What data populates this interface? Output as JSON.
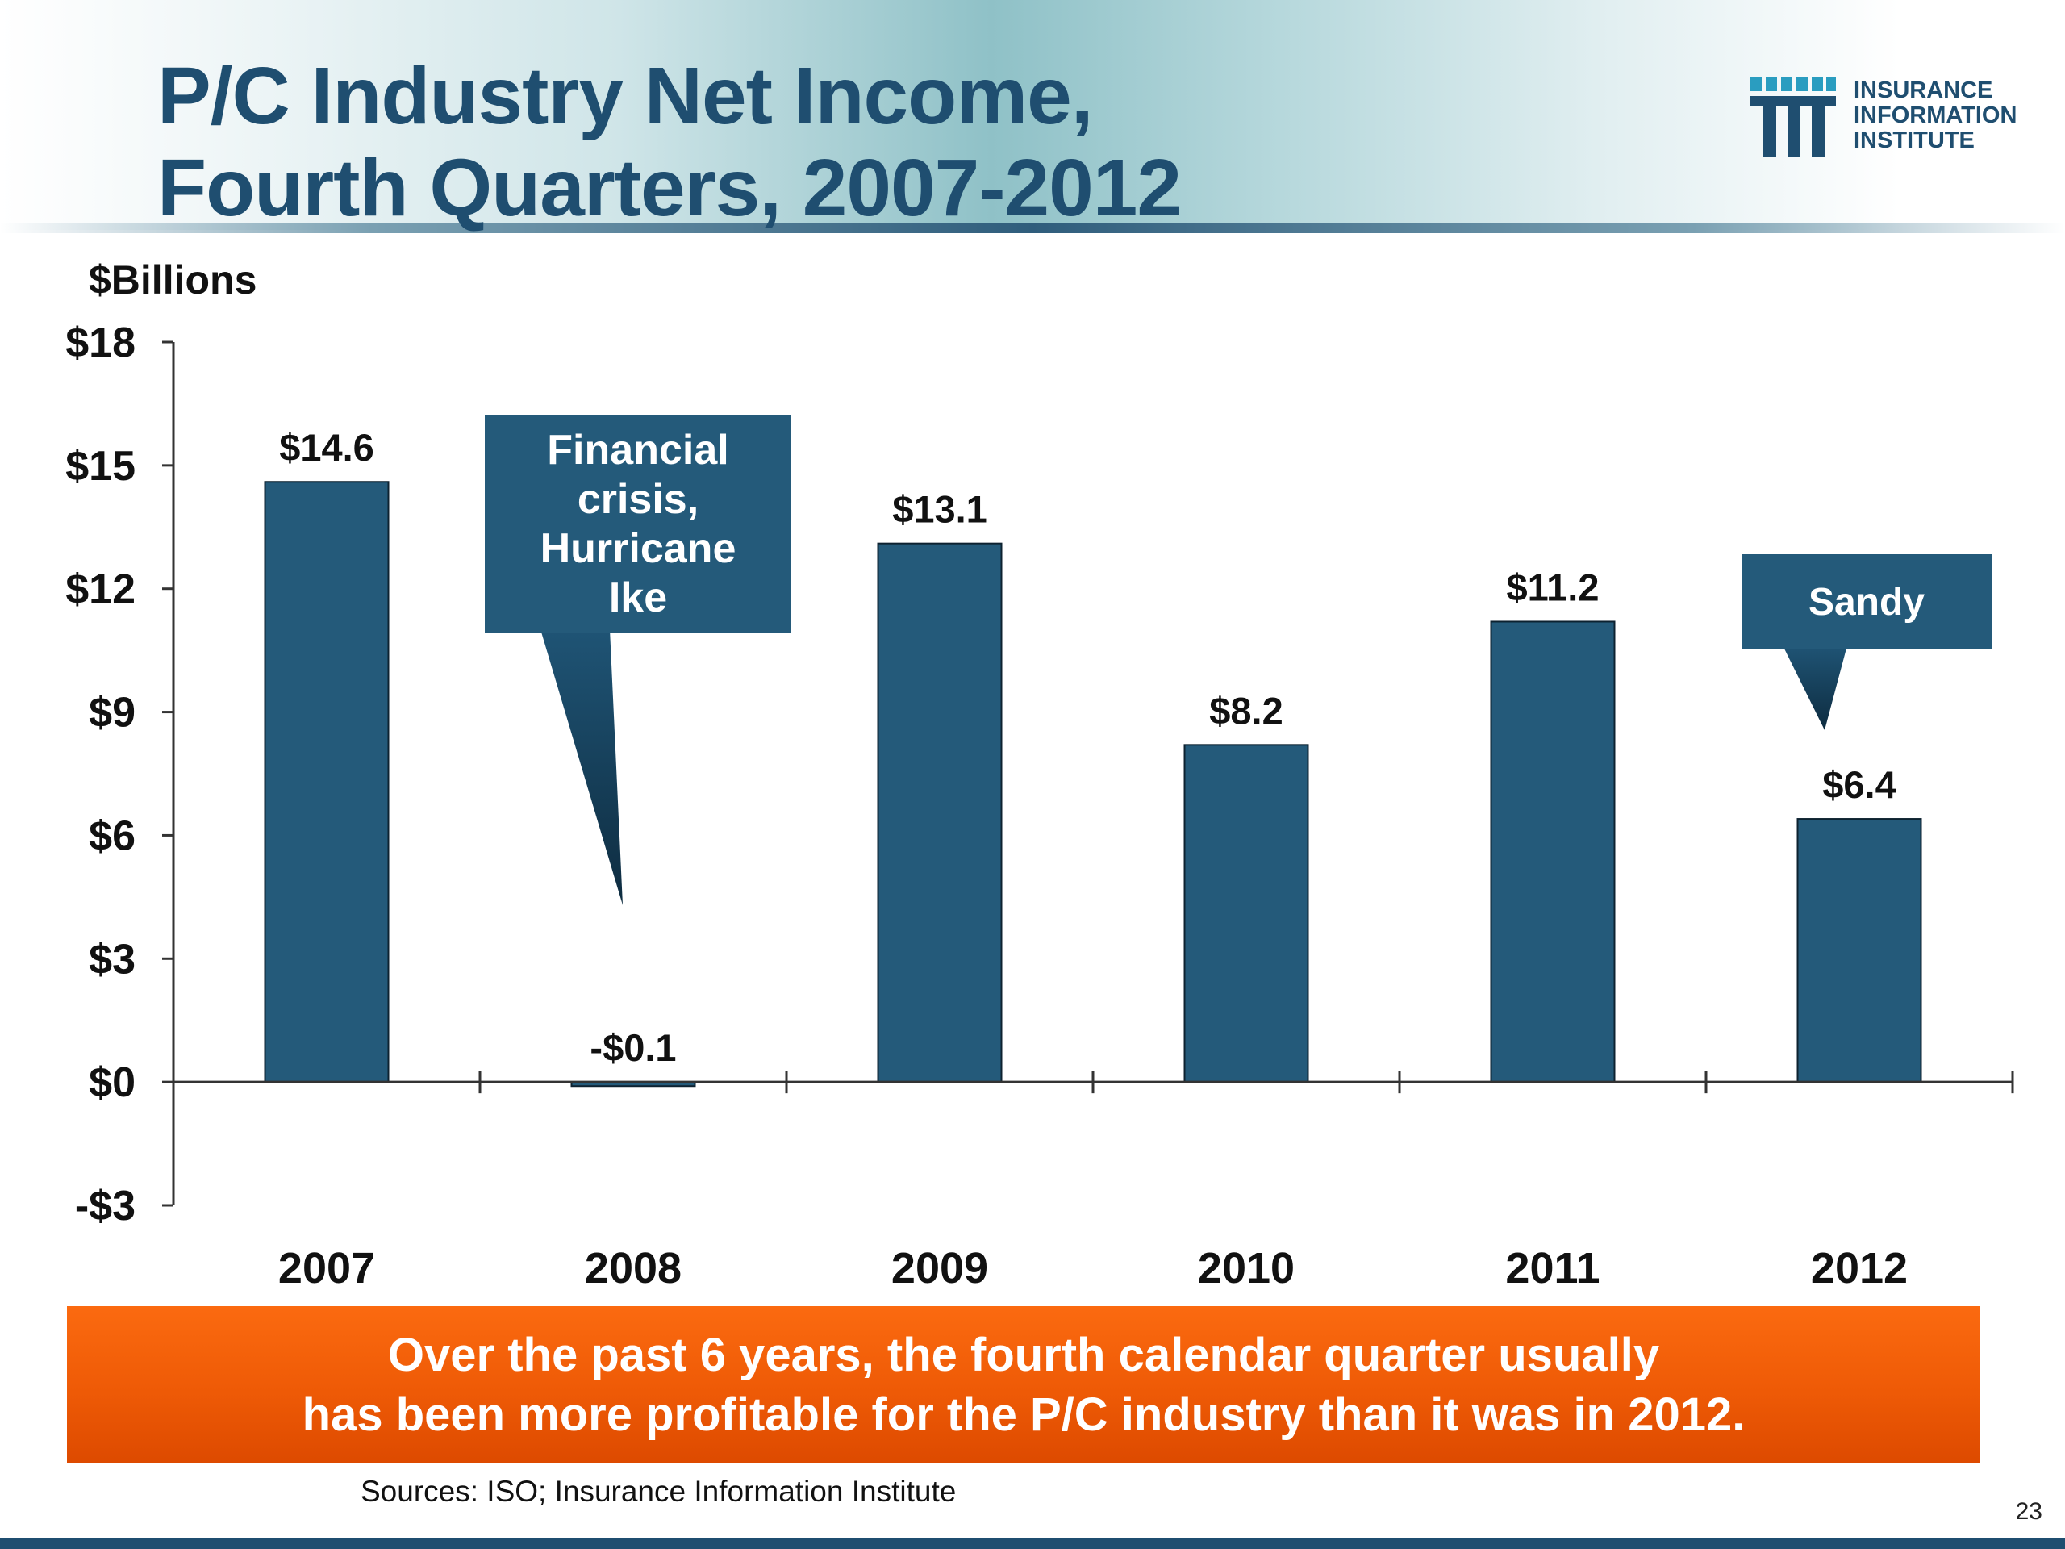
{
  "slide": {
    "title_line1": "P/C Industry Net Income,",
    "title_line2": "Fourth Quarters, 2007-2012",
    "logo": {
      "line1": "INSURANCE",
      "line2": "INFORMATION",
      "line3": "INSTITUTE"
    },
    "banner_line1": "Over the past 6 years, the fourth calendar quarter usually",
    "banner_line2": "has been more profitable for the P/C industry than it was in 2012.",
    "sources": "Sources: ISO; Insurance Information Institute",
    "page_number": "23",
    "colors": {
      "title": "#1f4e70",
      "bar": "#245a7a",
      "callout": "#245a7a",
      "banner": "#f06010"
    }
  },
  "chart_data": {
    "type": "bar",
    "title": "P/C Industry Net Income, Fourth Quarters, 2007-2012",
    "ylabel": "$Billions",
    "xlabel": "",
    "categories": [
      "2007",
      "2008",
      "2009",
      "2010",
      "2011",
      "2012"
    ],
    "values": [
      14.6,
      -0.1,
      13.1,
      8.2,
      11.2,
      6.4
    ],
    "data_labels": [
      "$14.6",
      "-$0.1",
      "$13.1",
      "$8.2",
      "$11.2",
      "$6.4"
    ],
    "ylim": [
      -3,
      18
    ],
    "yticks": [
      18,
      15,
      12,
      9,
      6,
      3,
      0,
      -3
    ],
    "ytick_labels": [
      "$18",
      "$15",
      "$12",
      "$9",
      "$6",
      "$3",
      "$0",
      "-$3"
    ],
    "grid": false,
    "legend": "none",
    "annotations": [
      {
        "category": "2008",
        "lines": [
          "Financial",
          "crisis,",
          "Hurricane",
          "Ike"
        ]
      },
      {
        "category": "2012",
        "lines": [
          "Sandy"
        ]
      }
    ]
  }
}
